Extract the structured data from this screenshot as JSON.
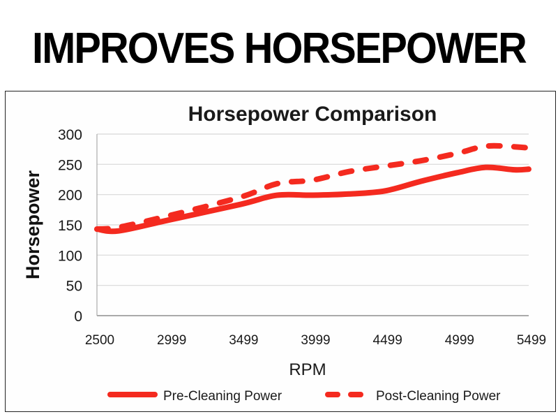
{
  "headline": "IMPROVES HORSEPOWER",
  "chart_data": {
    "type": "line",
    "title": "Horsepower Comparison",
    "xlabel": "RPM",
    "ylabel": "Horsepower",
    "ylim": [
      0,
      300
    ],
    "yticks": [
      "0",
      "50",
      "100",
      "150",
      "200",
      "250",
      "300"
    ],
    "xticks": [
      "2500",
      "2999",
      "3499",
      "3999",
      "4499",
      "4999",
      "5499"
    ],
    "grid": true,
    "legend_position": "bottom",
    "colors": {
      "series": "#f42a1f",
      "grid": "#d8d8d8",
      "axis": "#aaaaaa",
      "text": "#1a1a1a"
    },
    "x": [
      2500,
      2650,
      2999,
      3499,
      3750,
      3999,
      4250,
      4499,
      4750,
      4999,
      5200,
      5400,
      5499
    ],
    "series": [
      {
        "name": "Pre-Cleaning Power",
        "style": "solid",
        "values": [
          143,
          140,
          158,
          184,
          199,
          199,
          201,
          206,
          222,
          236,
          245,
          241,
          242
        ]
      },
      {
        "name": "Post-Cleaning Power",
        "style": "dashed",
        "values": [
          143,
          146,
          165,
          196,
          218,
          224,
          238,
          247,
          256,
          268,
          280,
          279,
          277
        ]
      }
    ]
  }
}
